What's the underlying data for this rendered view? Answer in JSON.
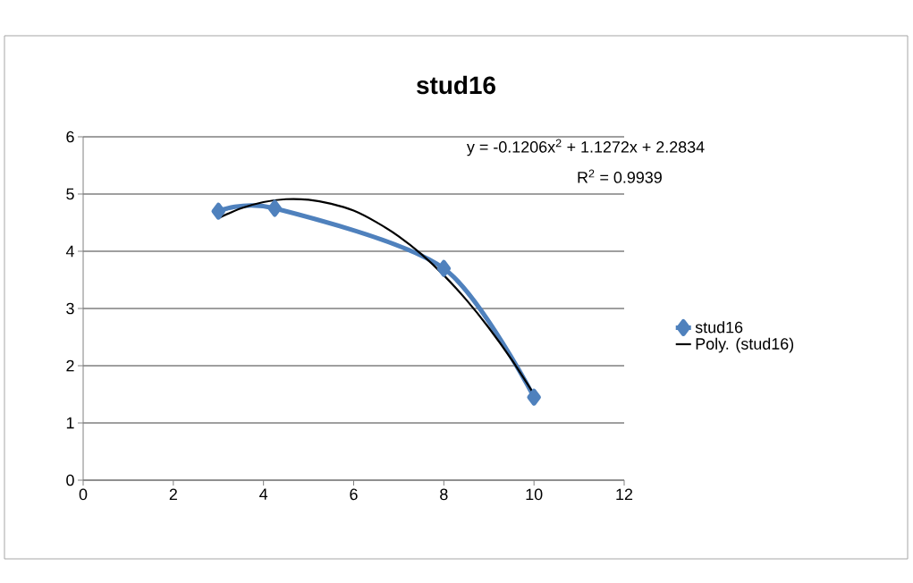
{
  "chart_data": {
    "type": "line",
    "title": "stud16",
    "series": [
      {
        "name": "stud16",
        "color": "#4f81bd",
        "marker": "diamond",
        "x": [
          3,
          4.25,
          8,
          10
        ],
        "values": [
          4.7,
          4.75,
          3.7,
          1.45
        ]
      },
      {
        "name": "Poly. (stud16)",
        "color": "#000000",
        "marker": "none",
        "x": [
          3,
          3.5,
          4,
          4.5,
          5,
          5.5,
          6,
          6.5,
          7,
          7.5,
          8,
          8.5,
          9,
          9.5,
          10
        ],
        "values": [
          4.58,
          4.75,
          4.86,
          4.91,
          4.9,
          4.83,
          4.71,
          4.51,
          4.26,
          3.95,
          3.58,
          3.15,
          2.66,
          2.11,
          1.5
        ]
      }
    ],
    "annotations": [
      "y = -0.1206x$^{2}$ + 1.1272x + 2.2834",
      "R$^{2}$ = 0.9939"
    ],
    "xlim": [
      0,
      12
    ],
    "xticks": [
      0,
      2,
      4,
      6,
      8,
      10,
      12
    ],
    "ylim": [
      0,
      6
    ],
    "yticks": [
      0,
      1,
      2,
      3,
      4,
      5,
      6
    ],
    "grid": "y",
    "legend": "right"
  }
}
